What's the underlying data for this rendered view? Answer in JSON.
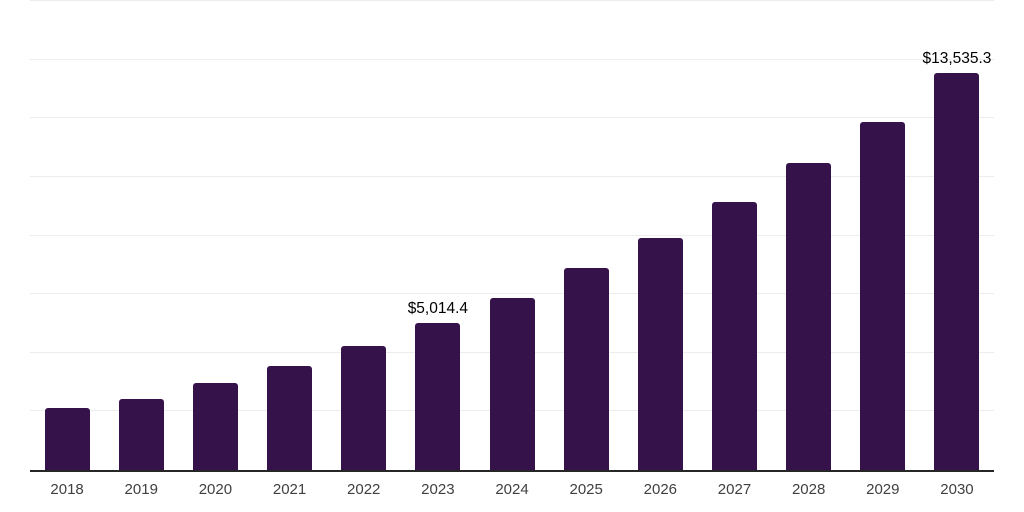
{
  "chart_data": {
    "type": "bar",
    "title": "",
    "xlabel": "",
    "ylabel": "",
    "categories": [
      "2018",
      "2019",
      "2020",
      "2021",
      "2022",
      "2023",
      "2024",
      "2025",
      "2026",
      "2027",
      "2028",
      "2029",
      "2030"
    ],
    "values": [
      2115,
      2425,
      2970,
      3565,
      4230,
      5014.4,
      5870,
      6895,
      7920,
      9145,
      10480,
      11875,
      13535.3
    ],
    "value_labels": {
      "2023": "$5,014.4",
      "2030": "$13,535.3"
    },
    "ylim": [
      0,
      16000
    ],
    "gridline_step": 2000,
    "grid": true,
    "y_tick_labels_shown": false,
    "legend": false,
    "bar_color": "#36124B",
    "gridline_color": "#ededed",
    "axis_line_color": "#262626",
    "x_tick_label_color": "#404040",
    "value_label_color": "#000000",
    "background_color": "#ffffff"
  }
}
